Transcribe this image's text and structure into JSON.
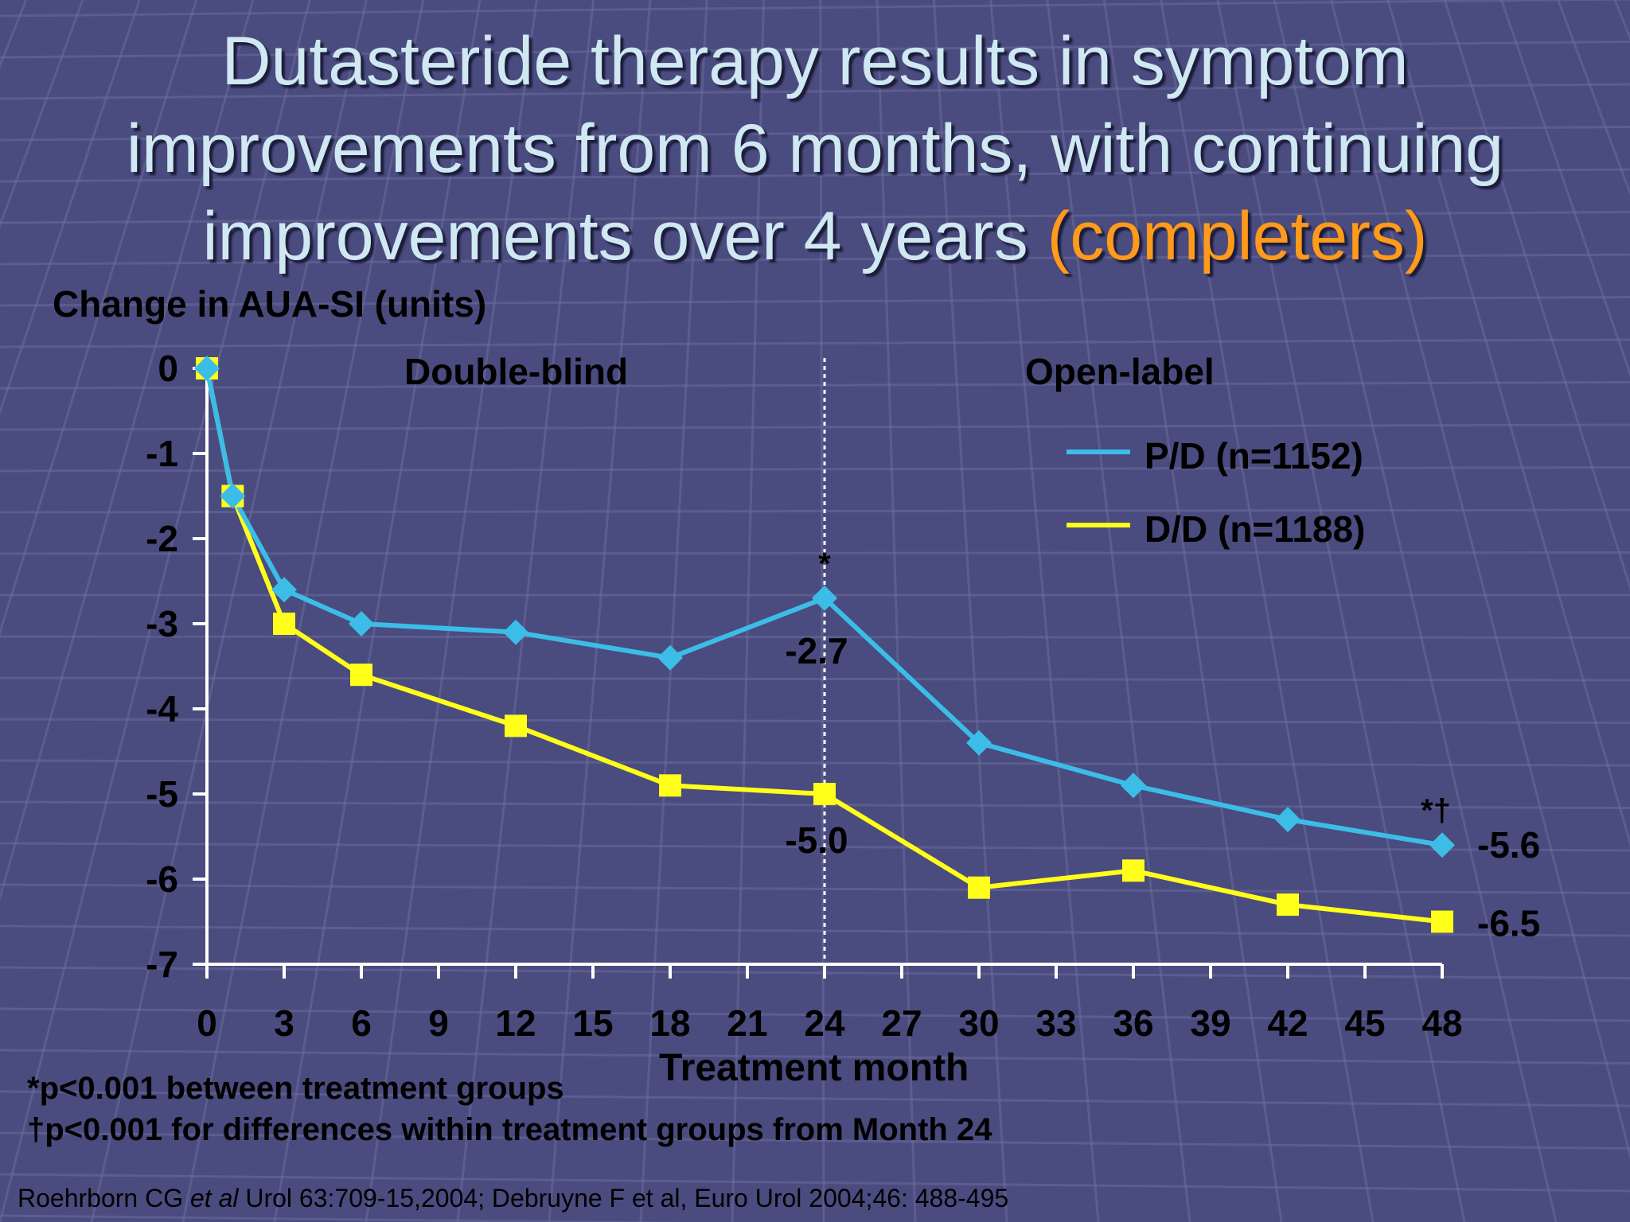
{
  "slide": {
    "title_lines": [
      "Dutasteride therapy results in symptom",
      "improvements from 6 months, with continuing",
      "improvements over 4 years "
    ],
    "title_highlight": "(completers)",
    "footnotes": [
      "*p<0.001 between treatment groups",
      "†p<0.001 for differences within treatment groups from Month 24"
    ],
    "reference_part1": "Roehrborn CG ",
    "reference_italic": "et al",
    "reference_part2": "  Urol 63:709-15,2004; Debruyne F et al, Euro Urol 2004;46: 488-495"
  },
  "colors": {
    "background": "#4a4b7e",
    "title": "#cfe8f2",
    "title_highlight": "#ff9a1a",
    "pd_series": "#3cbde8",
    "dd_series": "#ffff1a"
  },
  "chart_data": {
    "type": "line",
    "ylabel": "Change in AUA-SI (units)",
    "xlabel": "Treatment month",
    "xlim": [
      0,
      48
    ],
    "ylim": [
      -7,
      0
    ],
    "x_ticks": [
      0,
      3,
      6,
      9,
      12,
      15,
      18,
      21,
      24,
      27,
      30,
      33,
      36,
      39,
      42,
      45,
      48
    ],
    "y_ticks": [
      0,
      -1,
      -2,
      -3,
      -4,
      -5,
      -6,
      -7
    ],
    "phase_divider_x": 24,
    "phase_labels": [
      "Double-blind",
      "Open-label"
    ],
    "legend_position": "top-right",
    "series": [
      {
        "name": "P/D (n=1152)",
        "marker": "diamond",
        "x": [
          0,
          1,
          3,
          6,
          12,
          18,
          24,
          30,
          36,
          42,
          48
        ],
        "values": [
          0,
          -1.5,
          -2.6,
          -3.0,
          -3.1,
          -3.4,
          -2.7,
          -4.4,
          -4.9,
          -5.3,
          -5.6
        ]
      },
      {
        "name": "D/D (n=1188)",
        "marker": "square",
        "x": [
          0,
          1,
          3,
          6,
          12,
          18,
          24,
          30,
          36,
          42,
          48
        ],
        "values": [
          0,
          -1.5,
          -3.0,
          -3.6,
          -4.2,
          -4.9,
          -5.0,
          -6.1,
          -5.9,
          -6.3,
          -6.5
        ]
      }
    ],
    "annotations": [
      {
        "text": "*",
        "x": 24,
        "y": -2.7,
        "series": 0
      },
      {
        "text": "-2.7",
        "x": 24,
        "y": -2.7,
        "series": 0
      },
      {
        "text": "-5.0",
        "x": 24,
        "y": -5.0,
        "series": 1
      },
      {
        "text": "*†",
        "x": 48,
        "y": -5.6,
        "series": 0
      },
      {
        "text": "-5.6",
        "x": 48,
        "y": -5.6,
        "series": 0
      },
      {
        "text": "-6.5",
        "x": 48,
        "y": -6.5,
        "series": 1
      }
    ]
  }
}
